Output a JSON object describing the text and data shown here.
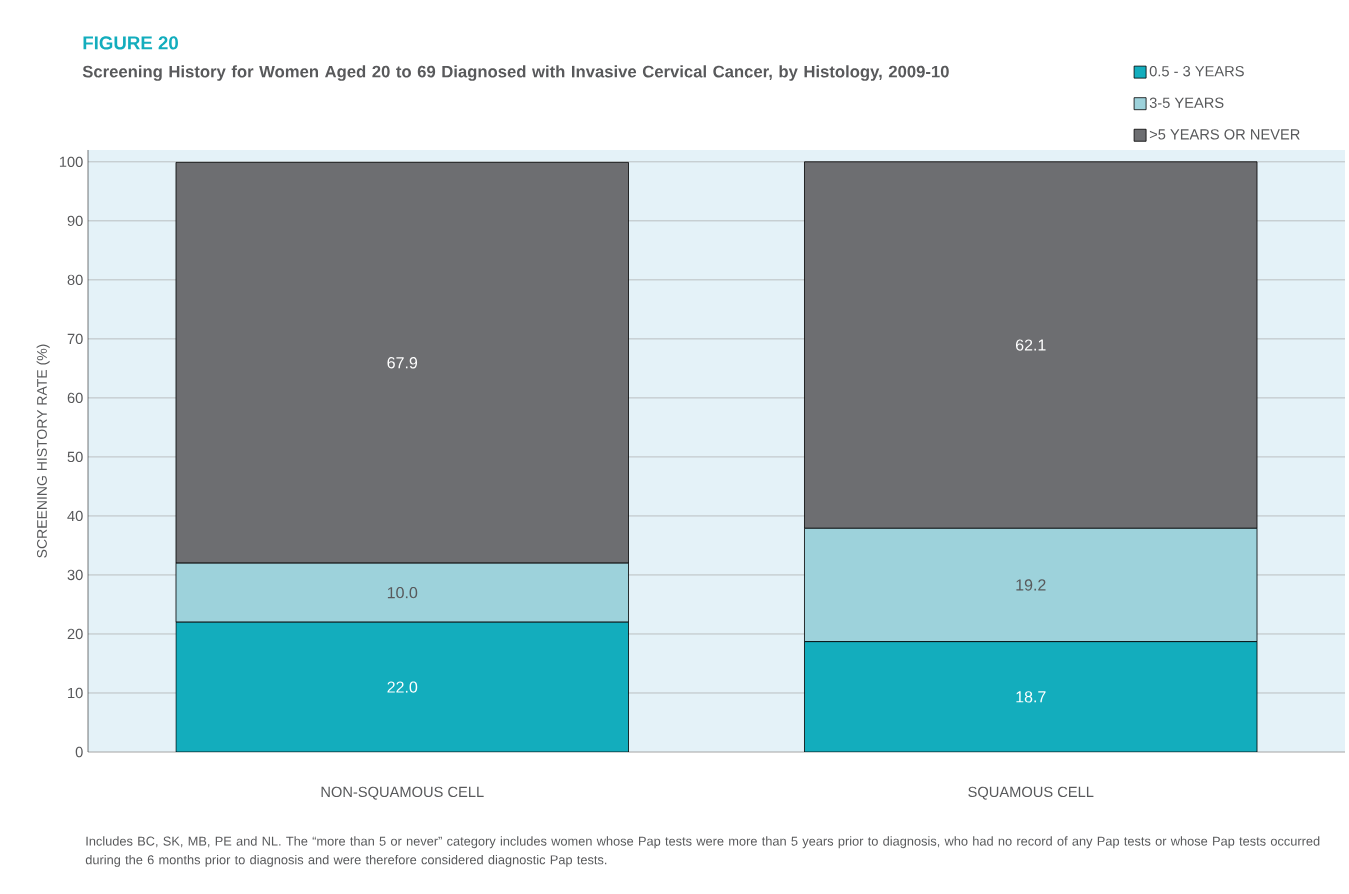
{
  "chart_data": {
    "type": "bar",
    "stacked": true,
    "title": "FIGURE 20",
    "subtitle": "Screening History for Women Aged 20 to 69 Diagnosed with Invasive Cervical Cancer, by Histology, 2009-10",
    "ylabel": "SCREENING HISTORY RATE (%)",
    "categories": [
      "NON-SQUAMOUS CELL",
      "SQUAMOUS CELL"
    ],
    "series": [
      {
        "name": "0.5 - 3 YEARS",
        "color": "#13adbd",
        "values": [
          22.0,
          18.7
        ],
        "value_labels": [
          "22.0",
          "18.7"
        ]
      },
      {
        "name": "3-5 YEARS",
        "color": "#9dd2db",
        "values": [
          10.0,
          19.2
        ],
        "value_labels": [
          "10.0",
          "19.2"
        ]
      },
      {
        "name": ">5 YEARS OR NEVER",
        "color": "#6d6e71",
        "values": [
          67.9,
          62.1
        ],
        "value_labels": [
          "67.9",
          "62.1"
        ]
      }
    ],
    "ylim": [
      0,
      102
    ],
    "yticks": [
      0,
      10,
      20,
      30,
      40,
      50,
      60,
      70,
      80,
      90,
      100
    ],
    "grid": "y",
    "legend": "top right",
    "annotations": [
      "Includes BC, SK, MB, PE and NL. The “more than 5 or never” category includes women whose Pap tests were more than 5 years prior to diagnosis, who had no record of any Pap tests or whose Pap tests occurred during the 6 months prior to diagnosis and were therefore considered diagnostic Pap tests."
    ]
  }
}
